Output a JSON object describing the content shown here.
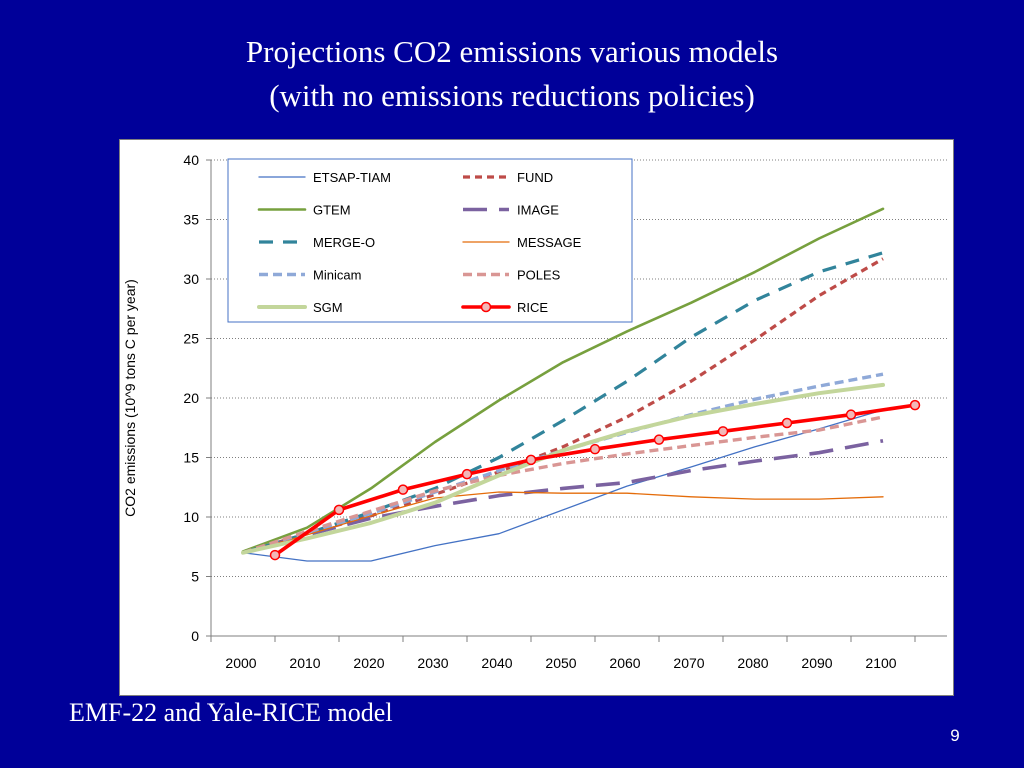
{
  "slide": {
    "title_line1": "Projections CO2 emissions various models",
    "title_line2": "(with no emissions reductions policies)",
    "footer": "EMF-22 and Yale-RICE model",
    "page_number": "9"
  },
  "chart_data": {
    "type": "line",
    "title": "",
    "xlabel": "",
    "ylabel": "CO2 emissions (10^9 tons C per year)",
    "ylim": [
      0,
      40
    ],
    "yticks": [
      0,
      5,
      10,
      15,
      20,
      25,
      30,
      35,
      40
    ],
    "categories": [
      "2000",
      "2010",
      "2020",
      "2030",
      "2040",
      "2050",
      "2060",
      "2070",
      "2080",
      "2090",
      "2100"
    ],
    "grid": "horizontal dotted",
    "legend_position": "top-left inside",
    "series": [
      {
        "name": "ETSAP-TIAM",
        "color": "#4472c4",
        "style": "thin",
        "x": [
          2000,
          2010,
          2020,
          2030,
          2040,
          2050,
          2060,
          2070,
          2080,
          2090,
          2100
        ],
        "values": [
          7.0,
          6.3,
          6.3,
          7.6,
          8.6,
          10.6,
          12.6,
          14.2,
          15.9,
          17.4,
          19.0
        ]
      },
      {
        "name": "FUND",
        "color": "#be4b48",
        "style": "dotted",
        "x": [
          2000,
          2010,
          2020,
          2030,
          2040,
          2050,
          2060,
          2070,
          2080,
          2090,
          2100
        ],
        "values": [
          7.0,
          8.6,
          10.1,
          11.9,
          13.8,
          15.9,
          18.4,
          21.4,
          24.9,
          28.6,
          31.7
        ]
      },
      {
        "name": "GTEM",
        "color": "#77a03e",
        "style": "solid",
        "x": [
          2000,
          2010,
          2020,
          2030,
          2040,
          2050,
          2060,
          2070,
          2080,
          2090,
          2100
        ],
        "values": [
          7.1,
          9.1,
          12.4,
          16.3,
          19.8,
          23.0,
          25.6,
          28.0,
          30.6,
          33.4,
          35.9
        ]
      },
      {
        "name": "IMAGE",
        "color": "#7b62a0",
        "style": "longdash",
        "x": [
          2000,
          2010,
          2020,
          2030,
          2040,
          2050,
          2060,
          2070,
          2080,
          2090,
          2100
        ],
        "values": [
          7.0,
          8.5,
          9.9,
          10.9,
          11.8,
          12.4,
          12.9,
          13.9,
          14.7,
          15.4,
          16.4
        ]
      },
      {
        "name": "MERGE-O",
        "color": "#31849b",
        "style": "dash",
        "x": [
          2000,
          2010,
          2020,
          2030,
          2040,
          2050,
          2060,
          2070,
          2080,
          2090,
          2100
        ],
        "values": [
          7.0,
          8.6,
          10.4,
          12.4,
          15.0,
          18.1,
          21.4,
          25.1,
          28.2,
          30.6,
          32.2
        ]
      },
      {
        "name": "MESSAGE",
        "color": "#e46c0a",
        "style": "thin",
        "x": [
          2000,
          2010,
          2020,
          2030,
          2040,
          2050,
          2060,
          2070,
          2080,
          2090,
          2100
        ],
        "values": [
          7.0,
          8.5,
          10.1,
          11.6,
          12.1,
          12.0,
          12.0,
          11.7,
          11.5,
          11.5,
          11.7
        ]
      },
      {
        "name": "Minicam",
        "color": "#8fa9d8",
        "style": "shortdash",
        "x": [
          2000,
          2010,
          2020,
          2030,
          2040,
          2050,
          2060,
          2070,
          2080,
          2090,
          2100
        ],
        "values": [
          7.0,
          8.7,
          10.3,
          12.1,
          13.9,
          15.6,
          17.1,
          18.6,
          19.9,
          21.0,
          22.0
        ]
      },
      {
        "name": "POLES",
        "color": "#d99694",
        "style": "shortdash",
        "x": [
          2000,
          2010,
          2020,
          2030,
          2040,
          2050,
          2060,
          2070,
          2080,
          2090,
          2100
        ],
        "values": [
          7.0,
          8.8,
          10.5,
          12.2,
          13.5,
          14.5,
          15.3,
          16.0,
          16.7,
          17.3,
          18.4
        ]
      },
      {
        "name": "SGM",
        "color": "#c3d69b",
        "style": "thick",
        "x": [
          2000,
          2010,
          2020,
          2030,
          2040,
          2050,
          2060,
          2070,
          2080,
          2090,
          2100
        ],
        "values": [
          7.0,
          8.2,
          9.5,
          11.2,
          13.5,
          15.6,
          17.2,
          18.5,
          19.5,
          20.4,
          21.1
        ]
      },
      {
        "name": "RICE",
        "color": "#ff0000",
        "style": "markers",
        "x": [
          2005,
          2015,
          2025,
          2035,
          2045,
          2055,
          2065,
          2075,
          2085,
          2095,
          2105
        ],
        "values": [
          6.8,
          10.6,
          12.3,
          13.6,
          14.8,
          15.7,
          16.5,
          17.2,
          17.9,
          18.6,
          19.4
        ]
      }
    ]
  }
}
